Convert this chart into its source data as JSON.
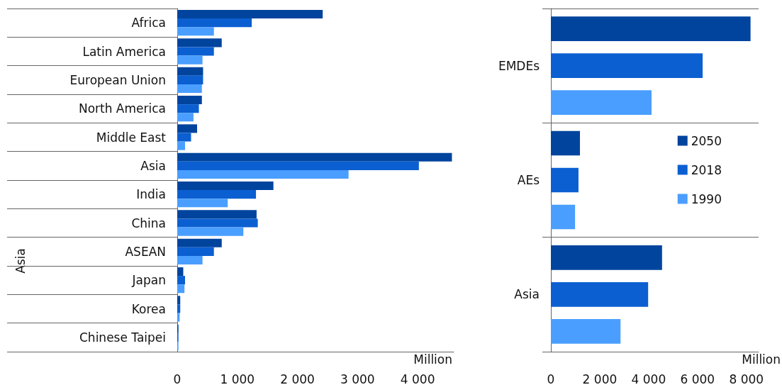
{
  "chart_data": [
    {
      "type": "bar",
      "orientation": "horizontal",
      "categories": [
        "Africa",
        "Latin America",
        "European Union",
        "North America",
        "Middle East",
        "Asia",
        "India",
        "China",
        "ASEAN",
        "Japan",
        "Korea",
        "Chinese Taipei"
      ],
      "series": [
        {
          "color": "#00449e",
          "values": [
            2420,
            740,
            430,
            410,
            330,
            4570,
            1600,
            1320,
            740,
            100,
            50,
            20
          ]
        },
        {
          "color": "#0b5fd1",
          "values": [
            1240,
            610,
            430,
            360,
            230,
            4020,
            1310,
            1340,
            610,
            130,
            50,
            20
          ]
        },
        {
          "color": "#4a9eff",
          "values": [
            610,
            420,
            410,
            270,
            130,
            2850,
            840,
            1100,
            420,
            120,
            40,
            20
          ]
        }
      ],
      "xlim": [
        0,
        4600
      ],
      "xticks": [
        0,
        {
          "value": 1000,
          "label": "1 000"
        },
        {
          "value": 2000,
          "label": "2 000"
        },
        {
          "value": 3000,
          "label": "3 000"
        },
        {
          "value": 4000,
          "label": "4 000"
        }
      ],
      "xlabel": "Million",
      "annotations": [
        "Asia"
      ],
      "legend": false,
      "grid": false
    },
    {
      "type": "bar",
      "orientation": "horizontal",
      "categories": [
        "EMDEs",
        "AEs",
        "Asia"
      ],
      "series": [
        {
          "name": "2050",
          "color": "#00449e",
          "values": [
            8170,
            1190,
            4550
          ]
        },
        {
          "name": "2018",
          "color": "#0b5fd1",
          "values": [
            6210,
            1130,
            3980
          ]
        },
        {
          "name": "1990",
          "color": "#4a9eff",
          "values": [
            4120,
            990,
            2850
          ]
        }
      ],
      "xlim": [
        0,
        8500
      ],
      "xticks": [
        0,
        {
          "value": 2000,
          "label": "2 000"
        },
        {
          "value": 4000,
          "label": "4 000"
        },
        {
          "value": 6000,
          "label": "6 000"
        },
        {
          "value": 8000,
          "label": "8 000"
        }
      ],
      "xlabel": "Million",
      "legend": "right",
      "grid": false
    }
  ]
}
